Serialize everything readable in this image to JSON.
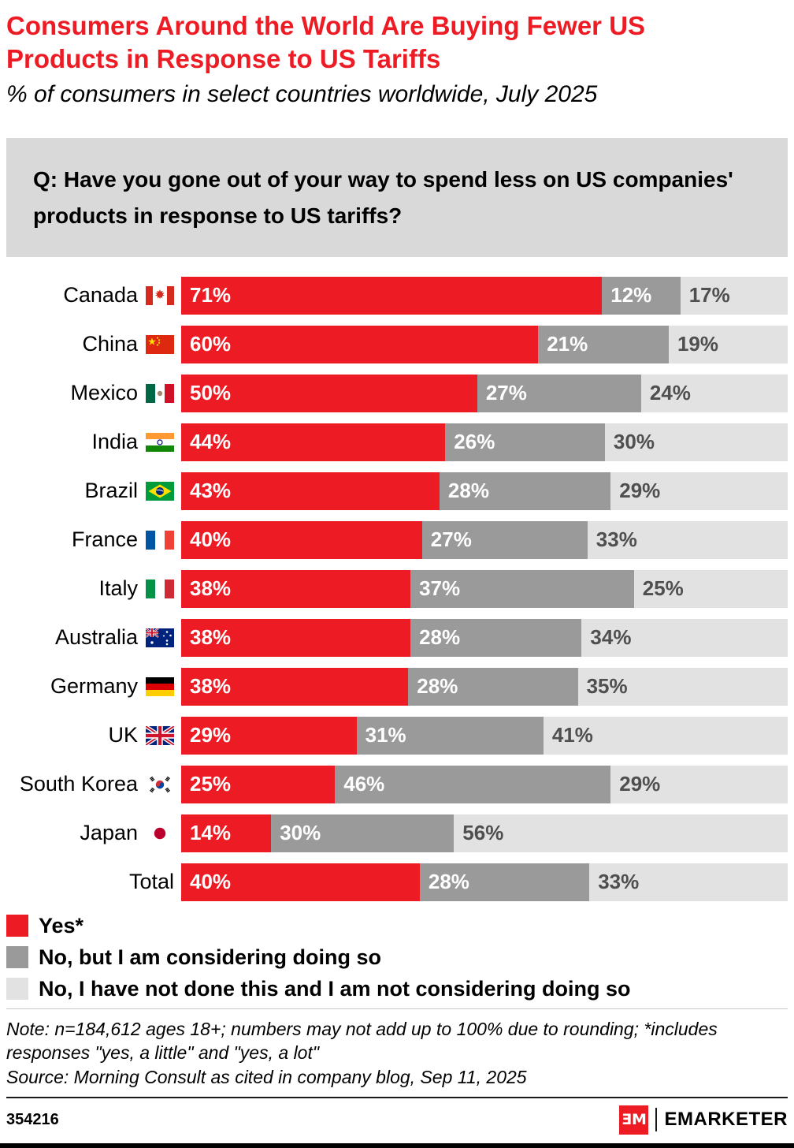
{
  "header": {
    "title_lines": [
      "Consumers Around the World Are Buying Fewer US",
      "Products in Response to US Tariffs"
    ],
    "subtitle": "% of consumers in select countries worldwide, July 2025"
  },
  "question_lines": [
    "Q: Have you gone out of your way to spend less on US companies'",
    "products in response to US tariffs?"
  ],
  "chart_data": {
    "type": "bar",
    "stacked": true,
    "orientation": "horizontal",
    "unit": "%",
    "x_range": [
      0,
      100
    ],
    "categories": [
      "Canada",
      "China",
      "Mexico",
      "India",
      "Brazil",
      "France",
      "Italy",
      "Australia",
      "Germany",
      "UK",
      "South Korea",
      "Japan",
      "Total"
    ],
    "flags": [
      "canada",
      "china",
      "mexico",
      "india",
      "brazil",
      "france",
      "italy",
      "australia",
      "germany",
      "uk",
      "south-korea",
      "japan",
      null
    ],
    "series": [
      {
        "name": "Yes*",
        "color": "#ed1c24",
        "label_color": "#ffffff",
        "values": [
          71,
          60,
          50,
          44,
          43,
          40,
          38,
          38,
          38,
          29,
          25,
          14,
          40
        ]
      },
      {
        "name": "No, but I am considering doing so",
        "color": "#9a9a9a",
        "label_color": "#ffffff",
        "values": [
          12,
          21,
          27,
          26,
          28,
          27,
          37,
          28,
          28,
          31,
          46,
          30,
          28
        ]
      },
      {
        "name": "No, I have not done this and I am not considering doing so",
        "color": "#e2e2e2",
        "label_color": "#4f4f4f",
        "values": [
          17,
          19,
          24,
          30,
          29,
          33,
          25,
          34,
          35,
          41,
          29,
          56,
          33
        ]
      }
    ]
  },
  "notes": {
    "note_lines": [
      "Note: n=184,612 ages 18+; numbers may not add up to 100% due to rounding; *includes",
      "responses \"yes, a little\" and \"yes, a lot\""
    ],
    "source": "Source: Morning Consult as cited in company blog, Sep 11, 2025"
  },
  "footer": {
    "chart_id": "354216",
    "logo_mark": "ƎM",
    "brand": "EMARKETER"
  }
}
